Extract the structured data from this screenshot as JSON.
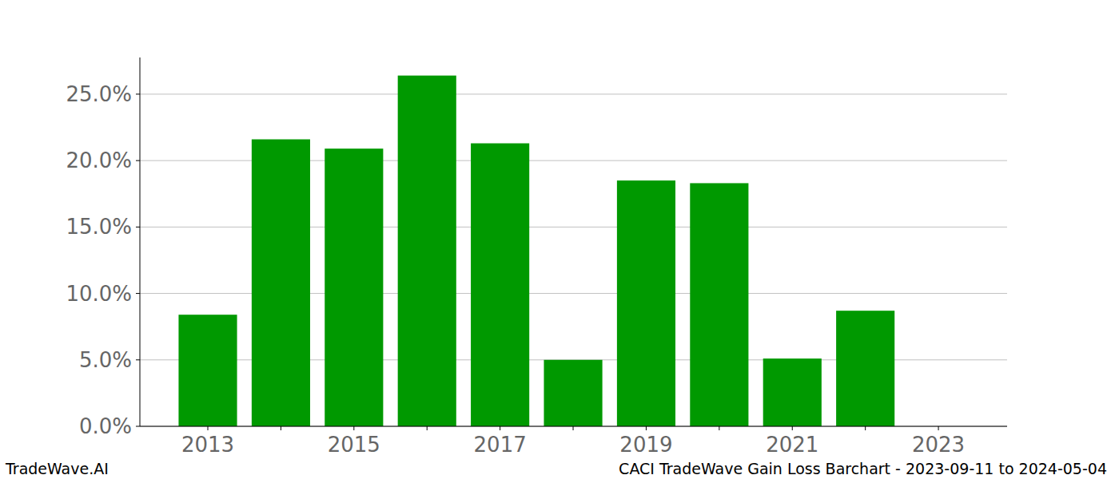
{
  "chart_data": {
    "type": "bar",
    "title": "CACI TradeWave Gain Loss Barchart - 2023-09-11 to 2024-05-04",
    "annotations": [
      "TradeWave.AI"
    ],
    "categories": [
      "2013",
      null,
      "2015",
      null,
      "2017",
      null,
      "2019",
      null,
      "2021",
      null,
      "2023"
    ],
    "values": [
      8.4,
      21.6,
      20.9,
      26.4,
      21.3,
      5.0,
      18.5,
      18.3,
      5.1,
      8.7,
      0
    ],
    "color": "#009900",
    "ylim": [
      0,
      27.76
    ],
    "yticks": [
      {
        "value": 0,
        "label": "0.0%"
      },
      {
        "value": 5,
        "label": "5.0%"
      },
      {
        "value": 10,
        "label": "10.0%"
      },
      {
        "value": 15,
        "label": "15.0%"
      },
      {
        "value": 20,
        "label": "20.0%"
      },
      {
        "value": 25,
        "label": "25.0%"
      }
    ],
    "grid": true
  }
}
